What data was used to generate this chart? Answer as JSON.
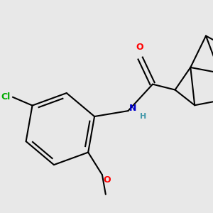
{
  "bg_color": "#e8e8e8",
  "atom_colors": {
    "O": "#ff0000",
    "N": "#0000cc",
    "Cl": "#00aa00",
    "C": "#000000",
    "H": "#4499aa"
  },
  "bond_color": "#000000",
  "bond_width": 1.5,
  "figsize": [
    3.0,
    3.0
  ],
  "dpi": 100,
  "xlim": [
    0,
    300
  ],
  "ylim": [
    0,
    300
  ]
}
